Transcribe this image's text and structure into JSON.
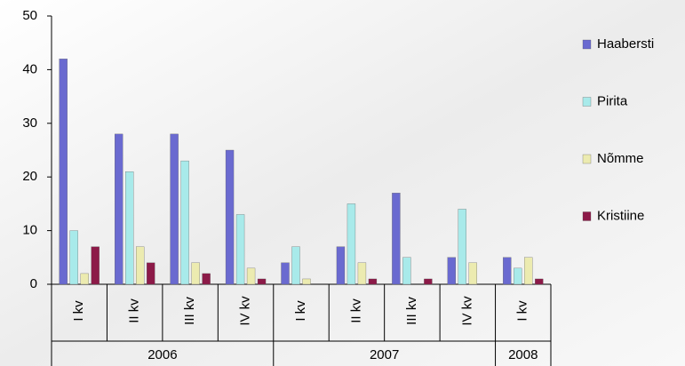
{
  "chart_data": {
    "type": "bar",
    "categories": [
      "I kv",
      "II kv",
      "III kv",
      "IV kv",
      "I kv",
      "II kv",
      "III kv",
      "IV kv",
      "I kv"
    ],
    "category_groups": [
      {
        "label": "2006",
        "count": 4
      },
      {
        "label": "2007",
        "count": 4
      },
      {
        "label": "2008",
        "count": 1
      }
    ],
    "series": [
      {
        "name": "Haabersti",
        "color": "#6a6ad0",
        "values": [
          42,
          28,
          28,
          25,
          4,
          7,
          17,
          5,
          5
        ]
      },
      {
        "name": "Pirita",
        "color": "#a8eaea",
        "values": [
          10,
          21,
          23,
          13,
          7,
          15,
          5,
          14,
          3
        ]
      },
      {
        "name": "Nõmme",
        "color": "#ecebb0",
        "values": [
          2,
          7,
          4,
          3,
          1,
          4,
          0,
          4,
          5
        ]
      },
      {
        "name": "Kristiine",
        "color": "#8c1a48",
        "values": [
          7,
          4,
          2,
          1,
          0,
          1,
          1,
          0,
          1
        ]
      }
    ],
    "ylim": [
      0,
      50
    ],
    "yticks": [
      0,
      10,
      20,
      30,
      40,
      50
    ],
    "legend": "right"
  }
}
